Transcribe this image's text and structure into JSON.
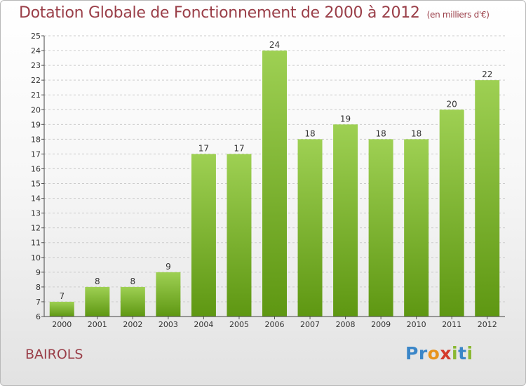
{
  "header": {
    "title": "Dotation Globale de Fonctionnement de 2000 à 2012",
    "unit": "(en milliers d'€)"
  },
  "footer": {
    "town": "BAIROLS",
    "logo": [
      "P",
      "r",
      "o",
      "x",
      "i",
      "t",
      "i"
    ],
    "logo_colors": [
      "#3a86c8",
      "#3a86c8",
      "#e8941c",
      "#d43a2a",
      "#8ab832",
      "#3a86c8",
      "#8ab832"
    ]
  },
  "chart_data": {
    "type": "bar",
    "title": "Dotation Globale de Fonctionnement de 2000 à 2012",
    "subtitle": "(en milliers d'€)",
    "categories": [
      "2000",
      "2001",
      "2002",
      "2003",
      "2004",
      "2005",
      "2006",
      "2007",
      "2008",
      "2009",
      "2010",
      "2011",
      "2012"
    ],
    "values": [
      7,
      8,
      8,
      9,
      17,
      17,
      24,
      18,
      19,
      18,
      18,
      20,
      22
    ],
    "ylim": [
      6,
      25
    ],
    "yticks": [
      6,
      7,
      8,
      9,
      10,
      11,
      12,
      13,
      14,
      15,
      16,
      17,
      18,
      19,
      20,
      21,
      22,
      23,
      24,
      25
    ],
    "grid": true,
    "bar_color_light": "#9ed053",
    "bar_color_dark": "#5e9712",
    "grid_color": "#cccccc"
  }
}
